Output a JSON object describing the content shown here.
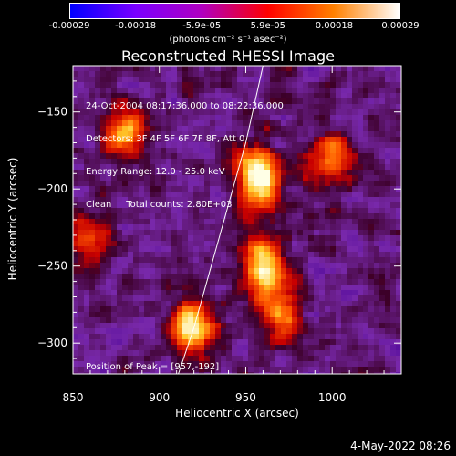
{
  "colorbar": {
    "ticks": [
      "-0.00029",
      "-0.00018",
      "-5.9e-05",
      "5.9e-05",
      "0.00018",
      "0.00029"
    ],
    "units": "(photons cm⁻² s⁻¹ asec⁻²)",
    "colors": [
      "#0000ff",
      "#7a00ff",
      "#b000c0",
      "#ff0000",
      "#ff8000",
      "#ffffff"
    ]
  },
  "chart_data": {
    "type": "heatmap",
    "title": "Reconstructed RHESSI Image",
    "xlabel": "Heliocentric X (arcsec)",
    "ylabel": "Heliocentric Y (arcsec)",
    "xlim": [
      850,
      1040
    ],
    "ylim": [
      -320,
      -120
    ],
    "xticks": [
      850,
      900,
      950,
      1000
    ],
    "yticks": [
      -150,
      -200,
      -250,
      -300
    ],
    "limb_curve": [
      [
        911,
        -320
      ],
      [
        920,
        -290
      ],
      [
        930,
        -250
      ],
      [
        940,
        -210
      ],
      [
        950,
        -170
      ],
      [
        960,
        -120
      ]
    ],
    "hot_spots": [
      {
        "x": 957,
        "y": -192,
        "intensity": 1.0
      },
      {
        "x": 960,
        "y": -250,
        "intensity": 0.75
      },
      {
        "x": 920,
        "y": -290,
        "intensity": 0.8
      },
      {
        "x": 880,
        "y": -165,
        "intensity": 0.55
      },
      {
        "x": 1000,
        "y": -180,
        "intensity": 0.5
      },
      {
        "x": 970,
        "y": -280,
        "intensity": 0.55
      },
      {
        "x": 860,
        "y": -235,
        "intensity": 0.45
      }
    ]
  },
  "info": {
    "line1": "24-Oct-2004 08:17:36.000 to 08:22:36.000",
    "line2": "Detectors: 3F 4F 5F 6F 7F 8F, Att 0",
    "line3": "Energy Range: 12.0 - 25.0 keV",
    "line4": "Clean     Total counts: 2.80E+03",
    "peak": "Position of Peak = [957,-192]"
  },
  "timestamp": "4-May-2022 08:26"
}
